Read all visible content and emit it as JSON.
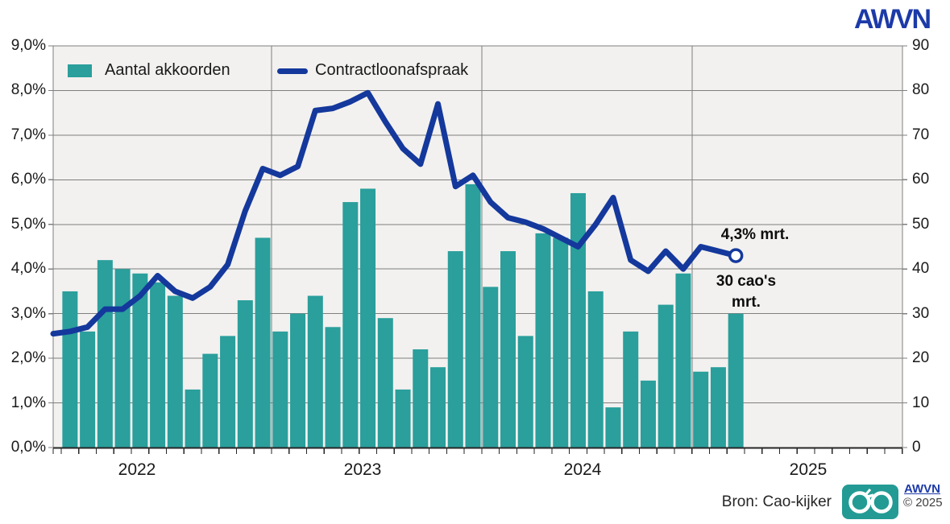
{
  "logo": {
    "text": "AWVN",
    "color": "#1C3AA8"
  },
  "legend": {
    "items": [
      {
        "label": "Aantal akkoorden",
        "swatch": "bar"
      },
      {
        "label": "Contractloonafspraak",
        "swatch": "line"
      }
    ]
  },
  "chart_data": {
    "type": "combo-bar-line",
    "title": "",
    "categories": [
      "jan-22",
      "feb-22",
      "mrt-22",
      "apr-22",
      "mei-22",
      "jun-22",
      "jul-22",
      "aug-22",
      "sep-22",
      "okt-22",
      "nov-22",
      "dec-22",
      "jan-23",
      "feb-23",
      "mrt-23",
      "apr-23",
      "mei-23",
      "jun-23",
      "jul-23",
      "aug-23",
      "sep-23",
      "okt-23",
      "nov-23",
      "dec-23",
      "jan-24",
      "feb-24",
      "mrt-24",
      "apr-24",
      "mei-24",
      "jun-24",
      "jul-24",
      "aug-24",
      "sep-24",
      "okt-24",
      "nov-24",
      "dec-24",
      "jan-25",
      "feb-25",
      "mrt-25"
    ],
    "year_labels": [
      "2022",
      "2023",
      "2024",
      "2025"
    ],
    "left_axis": {
      "min": 0,
      "max": 9,
      "tick_labels": [
        "0,0%",
        "1,0%",
        "2,0%",
        "3,0%",
        "4,0%",
        "5,0%",
        "6,0%",
        "7,0%",
        "8,0%",
        "9,0%"
      ]
    },
    "right_axis": {
      "min": 0,
      "max": 90,
      "tick_labels": [
        "0",
        "10",
        "20",
        "30",
        "40",
        "50",
        "60",
        "70",
        "80",
        "90"
      ]
    },
    "grid": true,
    "legend_position": "top-left-inside",
    "series": [
      {
        "name": "Aantal akkoorden",
        "type": "bar",
        "axis": "right",
        "color": "#2A9F9C",
        "values": [
          35,
          26,
          42,
          40,
          39,
          37,
          34,
          13,
          21,
          25,
          33,
          47,
          26,
          30,
          34,
          27,
          55,
          58,
          29,
          13,
          22,
          18,
          44,
          59,
          36,
          44,
          25,
          48,
          47,
          57,
          35,
          9,
          26,
          15,
          32,
          39,
          17,
          18,
          30
        ]
      },
      {
        "name": "Contractloonafspraak",
        "type": "line",
        "axis": "left",
        "color": "#14389C",
        "edge_start_value": 2.55,
        "end_marker": "open-circle",
        "values": [
          2.6,
          2.7,
          3.1,
          3.1,
          3.4,
          3.85,
          3.5,
          3.35,
          3.6,
          4.1,
          5.3,
          6.25,
          6.1,
          6.3,
          7.55,
          7.6,
          7.75,
          7.95,
          7.3,
          6.7,
          6.35,
          7.7,
          5.85,
          6.1,
          5.5,
          5.15,
          5.05,
          4.9,
          4.7,
          4.5,
          5.0,
          5.6,
          4.2,
          3.95,
          4.4,
          4.0,
          4.5,
          4.4,
          4.3
        ]
      }
    ],
    "annotations": {
      "line_end_label": "4,3% mrt.",
      "bar_end_label_line1": "30 cao's",
      "bar_end_label_line2": "mrt."
    }
  },
  "footer": {
    "source": "Bron: Cao-kijker",
    "brand": "AWVN",
    "copyright": "© 2025",
    "icon": "glasses-icon",
    "icon_color": "#239B94"
  },
  "colors": {
    "plot_bg": "#F2F1EF",
    "grid": "#7F7F7F",
    "axis": "#1A1A1A",
    "bar": "#2A9F9C",
    "line": "#14389C"
  }
}
